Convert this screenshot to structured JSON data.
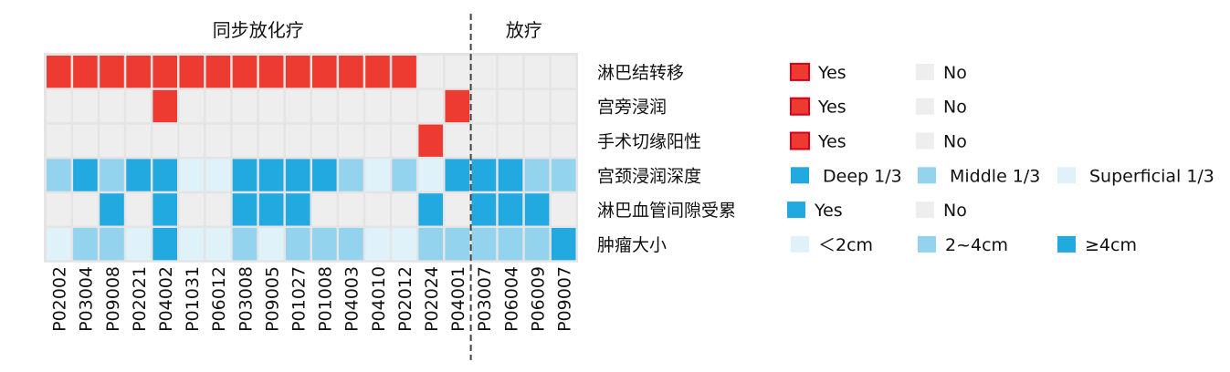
{
  "chart_data": {
    "type": "heatmap",
    "groups": [
      {
        "label": "同步放化疗",
        "count": 16
      },
      {
        "label": "放疗",
        "count": 4
      }
    ],
    "columns": [
      "P02002",
      "P03004",
      "P09008",
      "P02021",
      "P04002",
      "P01031",
      "P06012",
      "P03008",
      "P09005",
      "P01027",
      "P01008",
      "P04003",
      "P04010",
      "P02012",
      "P02024",
      "P04001",
      "P03007",
      "P06004",
      "P06009",
      "P09007"
    ],
    "rows": [
      {
        "label": "淋巴结转移",
        "values": [
          "Y",
          "Y",
          "Y",
          "Y",
          "Y",
          "Y",
          "Y",
          "Y",
          "Y",
          "Y",
          "Y",
          "Y",
          "Y",
          "Y",
          "N",
          "N",
          "N",
          "N",
          "N",
          "N"
        ],
        "legend": [
          {
            "key": "Y",
            "label": "Yes",
            "color": "#ee3b32"
          },
          {
            "key": "N",
            "label": "No",
            "color": "#eeeeee"
          }
        ]
      },
      {
        "label": "宫旁浸润",
        "values": [
          "N",
          "N",
          "N",
          "N",
          "Y",
          "N",
          "N",
          "N",
          "N",
          "N",
          "N",
          "N",
          "N",
          "N",
          "N",
          "Y",
          "N",
          "N",
          "N",
          "N"
        ],
        "legend": [
          {
            "key": "Y",
            "label": "Yes",
            "color": "#ee3b32"
          },
          {
            "key": "N",
            "label": "No",
            "color": "#eeeeee"
          }
        ]
      },
      {
        "label": "手术切缘阳性",
        "values": [
          "N",
          "N",
          "N",
          "N",
          "N",
          "N",
          "N",
          "N",
          "N",
          "N",
          "N",
          "N",
          "N",
          "N",
          "Y",
          "N",
          "N",
          "N",
          "N",
          "N"
        ],
        "legend": [
          {
            "key": "Y",
            "label": "Yes",
            "color": "#ee3b32"
          },
          {
            "key": "N",
            "label": "No",
            "color": "#eeeeee"
          }
        ]
      },
      {
        "label": "宫颈浸润深度",
        "values": [
          "M",
          "D",
          "M",
          "D",
          "D",
          "S",
          "S",
          "D",
          "D",
          "D",
          "D",
          "M",
          "S",
          "M",
          "S",
          "D",
          "D",
          "D",
          "M",
          "M"
        ],
        "legend": [
          {
            "key": "D",
            "label": "Deep 1/3",
            "color": "#22a9df"
          },
          {
            "key": "M",
            "label": "Middle 1/3",
            "color": "#93d3ee"
          },
          {
            "key": "S",
            "label": "Superficial 1/3",
            "color": "#dff2f9"
          }
        ]
      },
      {
        "label": "淋巴血管间隙受累",
        "values": [
          "N",
          "N",
          "Y",
          "N",
          "Y",
          "N",
          "N",
          "Y",
          "Y",
          "Y",
          "N",
          "N",
          "N",
          "N",
          "Y",
          "N",
          "Y",
          "Y",
          "Y",
          "N"
        ],
        "legend": [
          {
            "key": "Y",
            "label": "Yes",
            "color": "#22a9df"
          },
          {
            "key": "N",
            "label": "No",
            "color": "#eeeeee"
          }
        ]
      },
      {
        "label": "肿瘤大小",
        "values": [
          "S",
          "M",
          "M",
          "S",
          "L",
          "S",
          "S",
          "M",
          "S",
          "M",
          "M",
          "M",
          "S",
          "S",
          "M",
          "M",
          "M",
          "M",
          "M",
          "L"
        ],
        "legend": [
          {
            "key": "S",
            "label": "＜2cm",
            "color": "#dff2f9"
          },
          {
            "key": "M",
            "label": "2~4cm",
            "color": "#93d3ee"
          },
          {
            "key": "L",
            "label": "≥4cm",
            "color": "#22a9df"
          }
        ]
      }
    ]
  }
}
